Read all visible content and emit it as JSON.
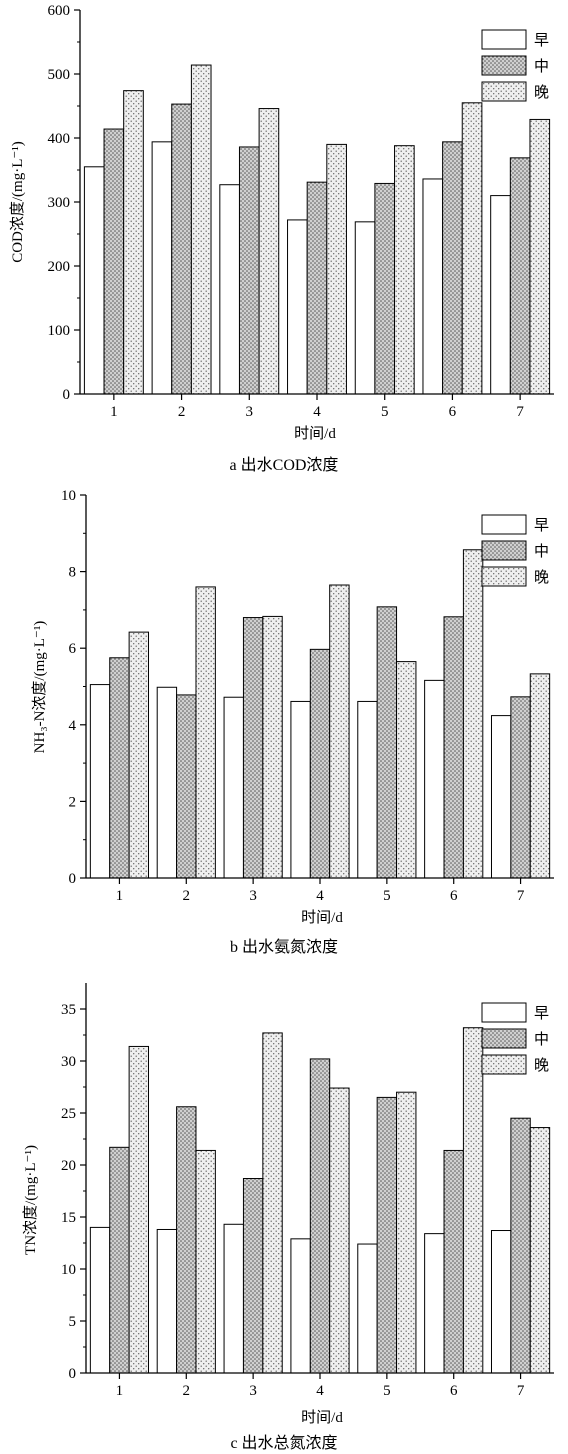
{
  "chart_data": [
    {
      "type": "bar",
      "caption": "a 出水COD浓度",
      "xlabel": "时间/d",
      "ylabel": "COD浓度/(mg·L⁻¹)",
      "categories": [
        "1",
        "2",
        "3",
        "4",
        "5",
        "6",
        "7"
      ],
      "ylim": [
        0,
        600
      ],
      "yticks": [
        "0",
        "100",
        "200",
        "300",
        "400",
        "500",
        "600"
      ],
      "legend_position": "top-right",
      "series": [
        {
          "name": "早",
          "values": [
            355,
            394,
            327,
            272,
            269,
            336,
            310
          ]
        },
        {
          "name": "中",
          "values": [
            414,
            453,
            386,
            331,
            329,
            394,
            369
          ]
        },
        {
          "name": "晚",
          "values": [
            474,
            514,
            446,
            390,
            388,
            455,
            429
          ]
        }
      ]
    },
    {
      "type": "bar",
      "caption": "b 出水氨氮浓度",
      "xlabel": "时间/d",
      "ylabel": "NH₃-N浓度/(mg·L⁻¹)",
      "categories": [
        "1",
        "2",
        "3",
        "4",
        "5",
        "6",
        "7"
      ],
      "ylim": [
        0,
        10
      ],
      "yticks": [
        "0",
        "2",
        "4",
        "6",
        "8",
        "10"
      ],
      "legend_position": "top-right",
      "series": [
        {
          "name": "早",
          "values": [
            5.05,
            4.98,
            4.72,
            4.61,
            4.61,
            5.16,
            4.24
          ]
        },
        {
          "name": "中",
          "values": [
            5.75,
            4.78,
            6.8,
            5.97,
            7.08,
            6.82,
            4.73
          ]
        },
        {
          "name": "晚",
          "values": [
            6.42,
            7.6,
            6.83,
            7.65,
            5.65,
            8.57,
            5.33
          ]
        }
      ]
    },
    {
      "type": "bar",
      "caption": "c 出水总氮浓度",
      "xlabel": "时间/d",
      "ylabel": "TN浓度/(mg·L⁻¹)",
      "categories": [
        "1",
        "2",
        "3",
        "4",
        "5",
        "6",
        "7"
      ],
      "ylim": [
        0,
        37.5
      ],
      "yticks": [
        "0",
        "5",
        "10",
        "15",
        "20",
        "25",
        "30",
        "35"
      ],
      "legend_position": "top-right",
      "series": [
        {
          "name": "早",
          "values": [
            14.0,
            13.8,
            14.3,
            12.9,
            12.4,
            13.4,
            13.7
          ]
        },
        {
          "name": "中",
          "values": [
            21.7,
            25.6,
            18.7,
            30.2,
            26.5,
            21.4,
            24.5
          ]
        },
        {
          "name": "晚",
          "values": [
            31.4,
            21.4,
            32.7,
            27.4,
            27.0,
            33.2,
            23.6
          ]
        }
      ]
    }
  ],
  "colors": {
    "early_fill": "#ffffff",
    "mid_pattern": "dense-dots",
    "late_pattern": "sparse-dots",
    "stroke": "#000000"
  }
}
